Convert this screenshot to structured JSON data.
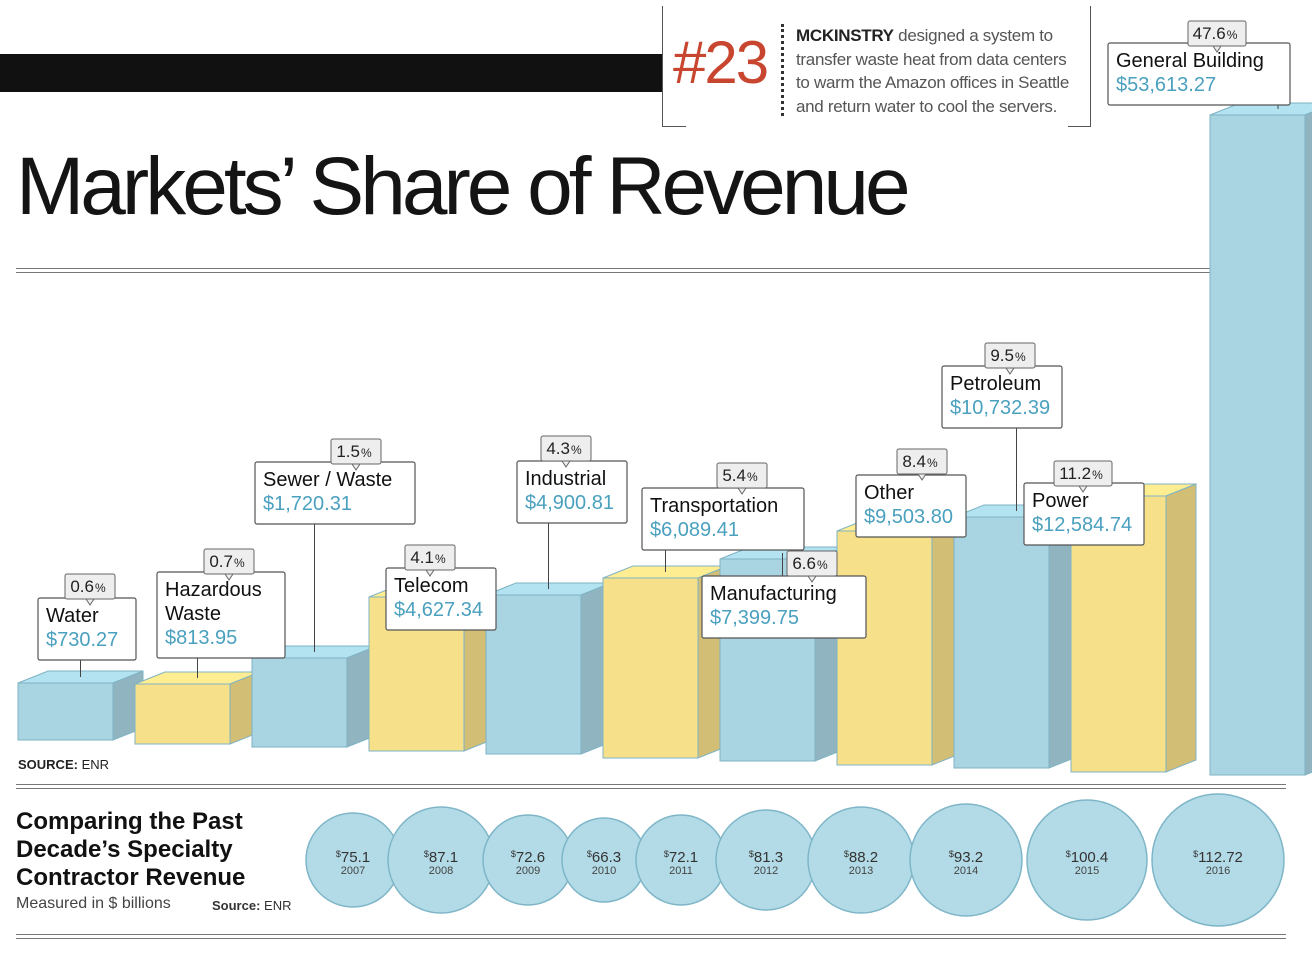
{
  "header": {
    "callout_number": "#23",
    "callout_company": "MCKINSTRY",
    "callout_line1": "designed a system to",
    "callout_line2": "transfer waste heat from data centers",
    "callout_line3": "to warm the Amazon offices in Seattle",
    "callout_line4": "and return water to cool the servers."
  },
  "title": "Markets’ Share of Revenue",
  "source": {
    "label": "SOURCE:",
    "value": "ENR"
  },
  "colors": {
    "blue": "#a9d5e3",
    "yellow": "#f7e08a",
    "accent_red": "#c8462f",
    "value_blue": "#4aa0bf"
  },
  "chart_data": [
    {
      "type": "bar",
      "title": "Markets’ Share of Revenue",
      "categories": [
        "Water",
        "Hazardous Waste",
        "Sewer / Waste",
        "Telecom",
        "Industrial",
        "Transportation",
        "Manufacturing",
        "Other",
        "Petroleum",
        "Power",
        "General Building"
      ],
      "series": [
        {
          "name": "Revenue",
          "values": [
            "$730.27",
            "$813.95",
            "$1,720.31",
            "$4,627.34",
            "$4,900.81",
            "$6,089.41",
            "$7,399.75",
            "$9,503.80",
            "$10,732.39",
            "$12,584.74",
            "$53,613.27"
          ]
        },
        {
          "name": "Share",
          "values": [
            "0.6",
            "0.7",
            "1.5",
            "4.1",
            "4.3",
            "5.4",
            "6.6",
            "8.4",
            "9.5",
            "11.2",
            "47.6"
          ]
        }
      ],
      "numeric_values": [
        730.27,
        813.95,
        1720.31,
        4627.34,
        4900.81,
        6089.41,
        7399.75,
        9503.8,
        10732.39,
        12584.74,
        53613.27
      ],
      "label_lines": [
        [
          "Water"
        ],
        [
          "Hazardous",
          "Waste"
        ],
        [
          "Sewer / Waste"
        ],
        [
          "Telecom"
        ],
        [
          "Industrial"
        ],
        [
          "Transportation"
        ],
        [
          "Manufacturing"
        ],
        [
          "Other"
        ],
        [
          "Petroleum"
        ],
        [
          "Power"
        ],
        [
          "General Building"
        ]
      ],
      "bar_colors": [
        "blue",
        "yellow",
        "blue",
        "yellow",
        "blue",
        "yellow",
        "blue",
        "yellow",
        "blue",
        "yellow",
        "blue"
      ],
      "percent_suffix": "%"
    },
    {
      "type": "bubble",
      "title": "Comparing the Past Decade’s Specialty Contractor Revenue",
      "subtitle": "Measured in $ billions",
      "source": "ENR",
      "x": [
        "2007",
        "2008",
        "2009",
        "2010",
        "2011",
        "2012",
        "2013",
        "2014",
        "2015",
        "2016"
      ],
      "values": [
        75.1,
        87.1,
        72.6,
        66.3,
        72.1,
        81.3,
        88.2,
        93.2,
        100.4,
        112.72
      ],
      "value_labels": [
        "75.1",
        "87.1",
        "72.6",
        "66.3",
        "72.1",
        "81.3",
        "88.2",
        "93.2",
        "100.4",
        "112.72"
      ],
      "currency_symbol": "$"
    }
  ],
  "decade": {
    "title_line1": "Comparing the Past",
    "title_line2": "Decade’s Specialty",
    "title_line3": "Contractor Revenue",
    "subtitle": "Measured in $ billions",
    "source_label": "Source:",
    "source_value": "ENR"
  }
}
